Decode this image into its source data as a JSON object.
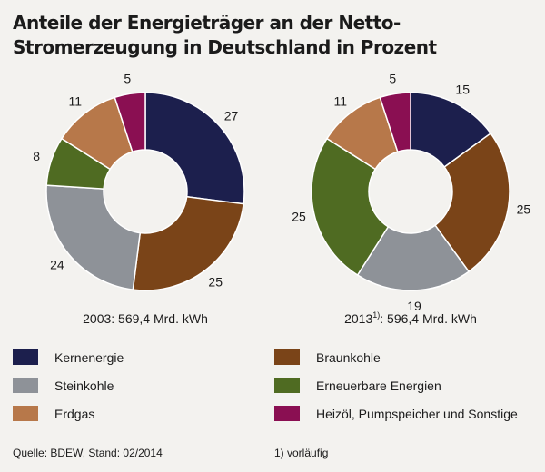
{
  "title": "Anteile der Energieträger an der Netto-Stromerzeugung in Deutschland in Prozent",
  "chart_data": {
    "type": "pie",
    "variant": "donut",
    "unit": "%",
    "series_colors": {
      "Kernenergie": "#1c1f4d",
      "Braunkohle": "#7a4418",
      "Steinkohle": "#8e9298",
      "Erneuerbare Energien": "#4f6b22",
      "Erdgas": "#b7784a",
      "Heizöl, Pumpspeicher und Sonstige": "#8a0f52"
    },
    "charts": [
      {
        "caption": "2003: 569,4 Mrd. kWh",
        "categories": [
          "Kernenergie",
          "Braunkohle",
          "Steinkohle",
          "Erneuerbare Energien",
          "Erdgas",
          "Heizöl, Pumpspeicher und Sonstige"
        ],
        "values": [
          27,
          25,
          24,
          8,
          11,
          5
        ]
      },
      {
        "caption_prefix": "2013",
        "caption_sup": "1)",
        "caption_suffix": ": 596,4 Mrd. kWh",
        "categories": [
          "Kernenergie",
          "Braunkohle",
          "Steinkohle",
          "Erneuerbare Energien",
          "Erdgas",
          "Heizöl, Pumpspeicher und Sonstige"
        ],
        "values": [
          15,
          25,
          19,
          25,
          11,
          5
        ]
      }
    ],
    "legend": {
      "placement": "bottom",
      "left": [
        {
          "label": "Kernenergie",
          "color": "#1c1f4d"
        },
        {
          "label": "Steinkohle",
          "color": "#8e9298"
        },
        {
          "label": "Erdgas",
          "color": "#b7784a"
        }
      ],
      "right": [
        {
          "label": "Braunkohle",
          "color": "#7a4418"
        },
        {
          "label": "Erneuerbare Energien",
          "color": "#4f6b22"
        },
        {
          "label": "Heizöl, Pumpspeicher und Sonstige",
          "color": "#8a0f52"
        }
      ]
    }
  },
  "footer": {
    "source": "Quelle: BDEW, Stand: 02/2014",
    "note": "1) vorläufig"
  }
}
